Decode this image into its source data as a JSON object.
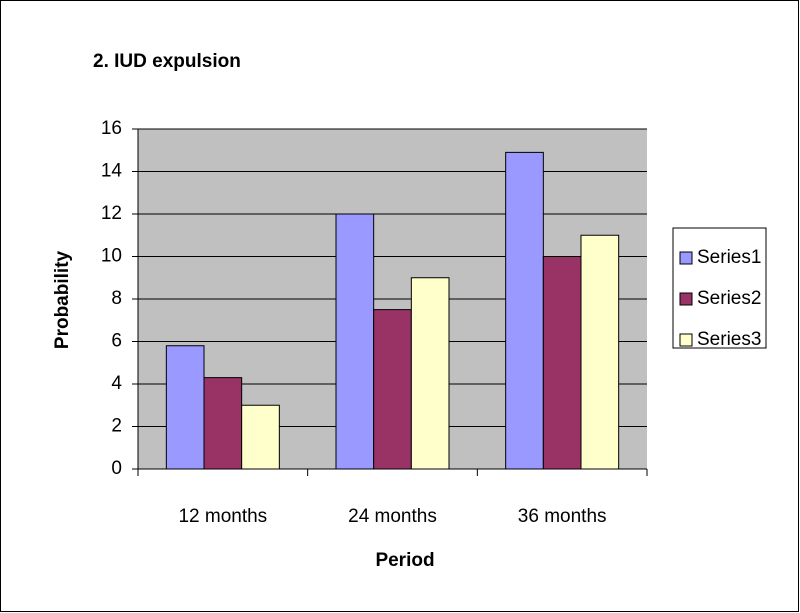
{
  "chart_data": {
    "type": "bar",
    "title": "2. IUD expulsion",
    "x_label": "Period",
    "y_label": "Probability",
    "categories": [
      "12 months",
      "24 months",
      "36 months"
    ],
    "series": [
      {
        "name": "Series1",
        "color": "#9999ff",
        "values": [
          5.8,
          12,
          14.9
        ]
      },
      {
        "name": "Series2",
        "color": "#993366",
        "values": [
          4.3,
          7.5,
          10
        ]
      },
      {
        "name": "Series3",
        "color": "#ffffcc",
        "values": [
          3,
          9,
          11
        ]
      }
    ],
    "ylim": [
      0,
      16
    ],
    "yticks": [
      0,
      2,
      4,
      6,
      8,
      10,
      12,
      14,
      16
    ],
    "grid": true,
    "plot_background": "#c0c0c0",
    "legend": "right"
  }
}
